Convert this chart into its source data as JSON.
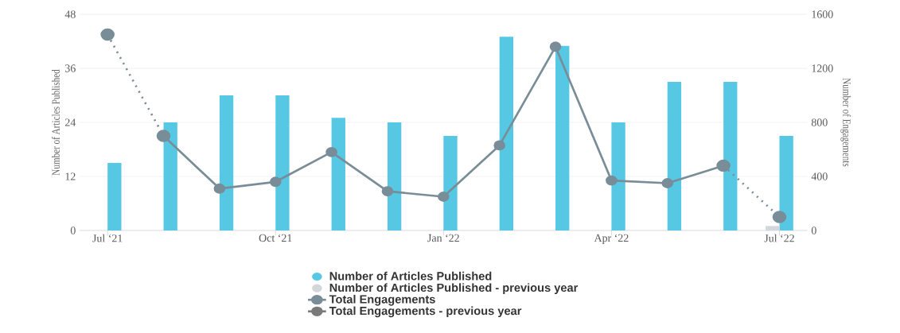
{
  "chart_data": {
    "type": "bar",
    "categories": [
      "Jul ‘21",
      null,
      null,
      "Oct ‘21",
      null,
      null,
      "Jan ‘22",
      null,
      null,
      "Apr ‘22",
      null,
      null,
      "Jul ‘22"
    ],
    "ylabel": "Number of Articles Published",
    "y2label": "Number of Engagements",
    "ylim": [
      0,
      48
    ],
    "yticks": [
      0,
      12,
      24,
      36,
      48
    ],
    "y2lim": [
      0,
      1600
    ],
    "y2ticks": [
      0,
      400,
      800,
      1200,
      1600
    ],
    "grid": "y",
    "legend": "bottom",
    "series": [
      {
        "name": "Number of Articles Published",
        "color": "#56c8e3",
        "values": [
          15,
          24,
          30,
          30,
          25,
          24,
          21,
          43,
          41,
          24,
          33,
          33,
          21
        ]
      },
      {
        "name": "Number of Articles Published - previous year",
        "color": "#d3d6da",
        "values": [
          null,
          null,
          null,
          null,
          null,
          null,
          null,
          null,
          null,
          null,
          null,
          null,
          1
        ]
      },
      {
        "type": "line",
        "axis": "y2",
        "color": "#798d98",
        "marker": "circle",
        "line_style": "dotted",
        "values": [
          1450,
          700,
          null,
          null,
          null,
          null,
          null,
          null,
          null,
          null,
          null,
          480,
          100
        ]
      },
      {
        "name": "Total Engagements",
        "type": "line",
        "axis": "y2",
        "color": "#798d98",
        "marker": "circle",
        "line_style": "solid",
        "values": [
          null,
          700,
          310,
          360,
          580,
          290,
          250,
          630,
          1360,
          370,
          350,
          480,
          null
        ]
      },
      {
        "name": "Total Engagements - previous year",
        "type": "line",
        "axis": "y2",
        "color": "#7a7a7a",
        "marker": "circle",
        "line_style": "solid",
        "values": [
          null,
          null,
          null,
          null,
          null,
          null,
          null,
          null,
          null,
          null,
          null,
          null,
          null
        ]
      }
    ]
  }
}
